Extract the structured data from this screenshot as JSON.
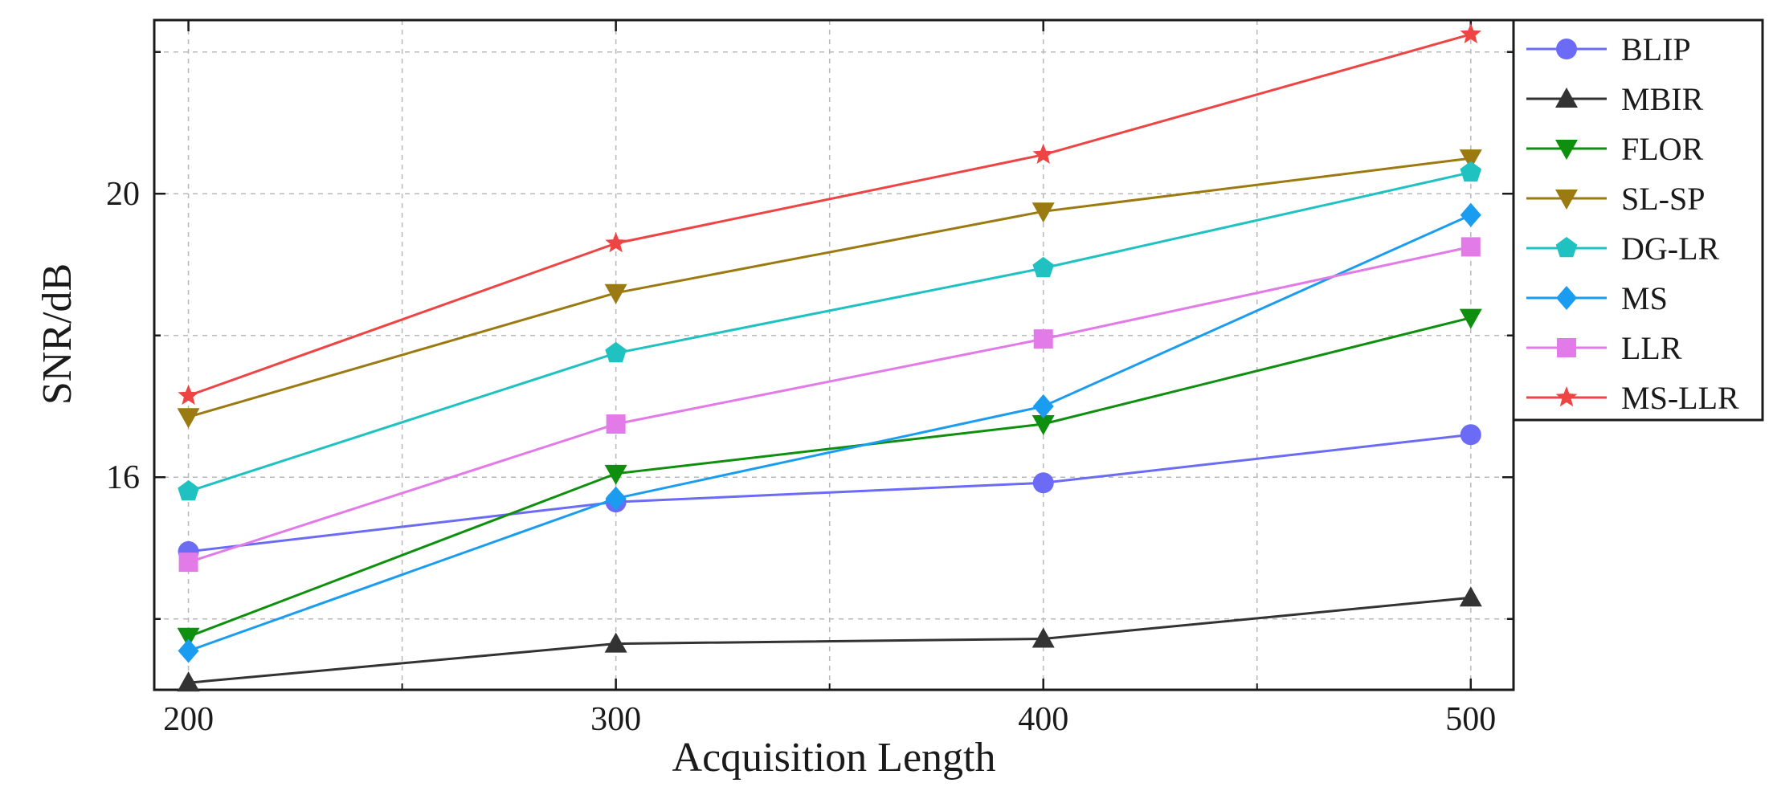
{
  "chart_data": {
    "type": "line",
    "xlabel": "Acquisition Length",
    "ylabel": "SNR/dB",
    "x": [
      200,
      300,
      400,
      500
    ],
    "x_ticks": [
      "200",
      "300",
      "400",
      "500"
    ],
    "y_ticks": [
      "16",
      "20"
    ],
    "xlim": [
      192,
      510
    ],
    "ylim": [
      13.0,
      22.45
    ],
    "grid": true,
    "legend_position": "right",
    "series": [
      {
        "name": "BLIP",
        "values": [
          14.95,
          15.65,
          15.92,
          16.6
        ],
        "color": "#6b6bf5",
        "marker": "circle"
      },
      {
        "name": "MBIR",
        "values": [
          13.1,
          13.65,
          13.72,
          14.3
        ],
        "color": "#333333",
        "marker": "triangle-up"
      },
      {
        "name": "FLOR",
        "values": [
          13.75,
          16.05,
          16.75,
          18.25
        ],
        "color": "#0e8f0e",
        "marker": "triangle-down"
      },
      {
        "name": "SL-SP",
        "values": [
          16.85,
          18.6,
          19.75,
          20.5
        ],
        "color": "#9b7a12",
        "marker": "triangle-down"
      },
      {
        "name": "DG-LR",
        "values": [
          15.8,
          17.75,
          18.95,
          20.3
        ],
        "color": "#1fc1c1",
        "marker": "pentagon"
      },
      {
        "name": "MS",
        "values": [
          13.55,
          15.7,
          17.0,
          19.7
        ],
        "color": "#1a9cf0",
        "marker": "diamond"
      },
      {
        "name": "LLR",
        "values": [
          14.8,
          16.75,
          17.95,
          19.25
        ],
        "color": "#e27ae8",
        "marker": "square"
      },
      {
        "name": "MS-LLR",
        "values": [
          17.15,
          19.3,
          20.55,
          22.25
        ],
        "color": "#ef4444",
        "marker": "star"
      }
    ]
  }
}
